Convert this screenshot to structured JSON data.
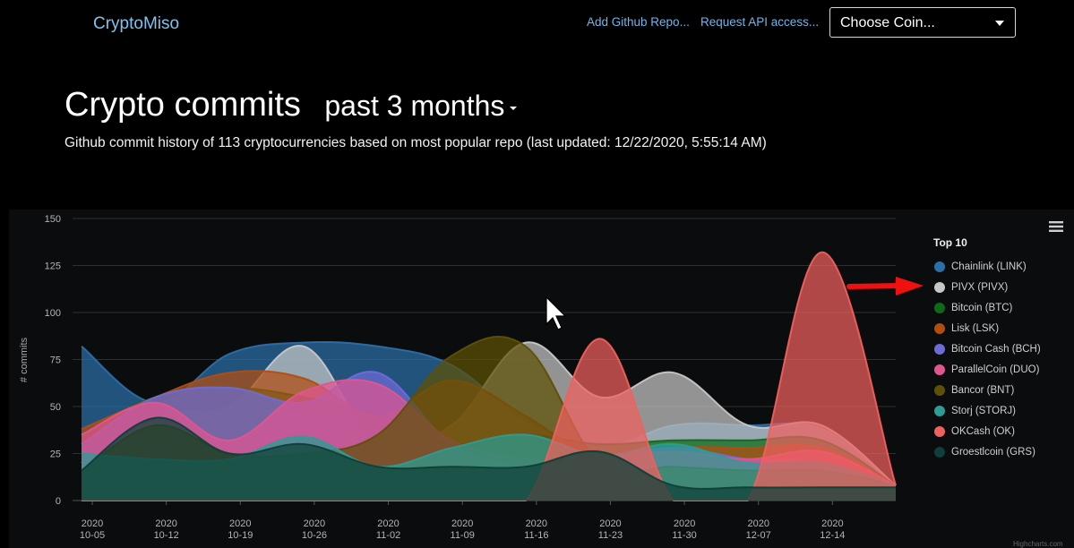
{
  "nav": {
    "brand": "CryptoMiso",
    "add_repo": "Add Github Repo...",
    "api_access": "Request API access...",
    "coin_select": "Choose Coin..."
  },
  "header": {
    "title": "Crypto commits",
    "period": "past 3 months",
    "subtitle": "Github commit history of 113 cryptocurrencies based on most popular repo (last updated: 12/22/2020, 5:55:14 AM)"
  },
  "chart_menu_icon": "hamburger-menu-icon",
  "annotation_icon": "red-arrow-icon",
  "credits": "Highcharts.com",
  "chart_data": {
    "type": "area",
    "ylabel": "# commits",
    "ylim": [
      0,
      150
    ],
    "yticks": [
      0,
      25,
      50,
      75,
      100,
      125,
      150
    ],
    "x": [
      "2020-10-05",
      "2020-10-12",
      "2020-10-19",
      "2020-10-26",
      "2020-11-02",
      "2020-11-09",
      "2020-11-16",
      "2020-11-23",
      "2020-11-30",
      "2020-12-07",
      "2020-12-14",
      "2020-12-21"
    ],
    "xtick_labels": [
      [
        "2020",
        "10-05"
      ],
      [
        "2020",
        "10-12"
      ],
      [
        "2020",
        "10-19"
      ],
      [
        "2020",
        "10-26"
      ],
      [
        "2020",
        "11-02"
      ],
      [
        "2020",
        "11-09"
      ],
      [
        "2020",
        "11-16"
      ],
      [
        "2020",
        "11-23"
      ],
      [
        "2020",
        "11-30"
      ],
      [
        "2020",
        "12-07"
      ],
      [
        "2020",
        "12-14"
      ]
    ],
    "legend_title": "Top 10",
    "grid": true,
    "series": [
      {
        "name": "Chainlink (LINK)",
        "color": "#2b6fa8",
        "values": [
          82,
          52,
          78,
          84,
          82,
          72,
          42,
          28,
          40,
          40,
          38,
          8
        ]
      },
      {
        "name": "PIVX (PIVX)",
        "color": "#c7c7c7",
        "values": [
          20,
          45,
          50,
          82,
          30,
          40,
          84,
          55,
          68,
          40,
          40,
          8
        ]
      },
      {
        "name": "Bitcoin (BTC)",
        "color": "#0d6b18",
        "values": [
          35,
          55,
          60,
          55,
          45,
          30,
          35,
          30,
          32,
          32,
          32,
          8
        ]
      },
      {
        "name": "Lisk (LSK)",
        "color": "#b24d10",
        "values": [
          38,
          55,
          68,
          65,
          45,
          64,
          45,
          22,
          28,
          28,
          28,
          8
        ]
      },
      {
        "name": "Bitcoin Cash (BCH)",
        "color": "#6e6bd8",
        "values": [
          30,
          55,
          60,
          52,
          68,
          30,
          18,
          22,
          28,
          22,
          20,
          8
        ]
      },
      {
        "name": "ParallelCoin (DUO)",
        "color": "#e05590",
        "values": [
          35,
          52,
          32,
          58,
          62,
          32,
          22,
          22,
          26,
          22,
          26,
          8
        ]
      },
      {
        "name": "Bancor (BNT)",
        "color": "#5e5006",
        "values": [
          16,
          40,
          25,
          25,
          35,
          77,
          82,
          20,
          18,
          16,
          16,
          8
        ]
      },
      {
        "name": "Storj (STORJ)",
        "color": "#2b9d94",
        "values": [
          25,
          22,
          22,
          34,
          18,
          28,
          35,
          24,
          30,
          20,
          20,
          8
        ]
      },
      {
        "name": "OKCash (OK)",
        "color": "#f0605e",
        "values": [
          0,
          0,
          0,
          0,
          0,
          0,
          0,
          86,
          0,
          0,
          132,
          8
        ]
      },
      {
        "name": "Groestlcoin (GRS)",
        "color": "#0e3f38",
        "values": [
          16,
          44,
          25,
          30,
          18,
          18,
          18,
          26,
          8,
          7,
          7,
          7
        ]
      }
    ]
  }
}
